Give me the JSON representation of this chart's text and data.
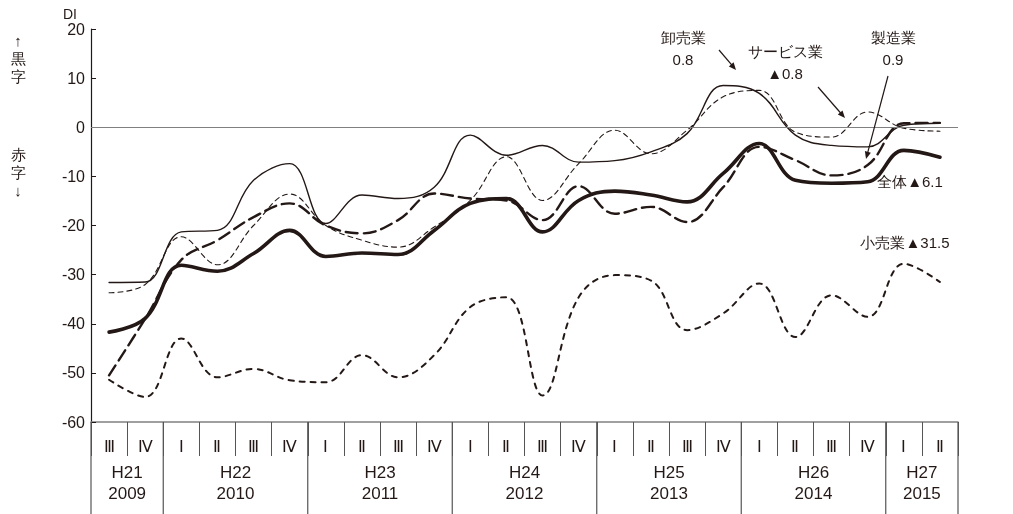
{
  "chart_data": {
    "type": "line",
    "ylabel": "DI",
    "categories": [
      "Ⅲ",
      "Ⅳ",
      "Ⅰ",
      "Ⅱ",
      "Ⅲ",
      "Ⅳ",
      "Ⅰ",
      "Ⅱ",
      "Ⅲ",
      "Ⅳ",
      "Ⅰ",
      "Ⅱ",
      "Ⅲ",
      "Ⅳ",
      "Ⅰ",
      "Ⅱ",
      "Ⅲ",
      "Ⅳ",
      "Ⅰ",
      "Ⅱ",
      "Ⅲ",
      "Ⅳ",
      "Ⅰ",
      "Ⅱ"
    ],
    "ylim": [
      -60,
      20
    ],
    "yticks": [
      -60,
      -50,
      -40,
      -30,
      -20,
      -10,
      0,
      10,
      20
    ],
    "grid": false,
    "marker": "none",
    "ref_lines": [
      {
        "axis": "y",
        "value": 0,
        "color": "#808080"
      }
    ],
    "annotations": [
      "↑黒字",
      "赤字↓",
      "H21\n2009",
      "H22\n2010",
      "H23\n2011",
      "H24\n2012",
      "H25\n2013",
      "H26\n2014",
      "H27\n2015",
      "全体▲6.1",
      "卸売業\n0.8",
      "サービス業\n▲0.8",
      "製造業\n0.9",
      "小売業▲31.5"
    ],
    "series": [
      {
        "color": "#231815",
        "line_style": "solid",
        "values": [
          -41.7,
          -38.9,
          -28.1,
          -29.3,
          -25.7,
          -21,
          -26.3,
          -25.6,
          -25.9,
          -21,
          -15.5,
          -14.5,
          -21.3,
          -14.9,
          -13,
          -13.8,
          -15.2,
          -9.4,
          -3.3,
          -10.8,
          -11.4,
          -11.1,
          -4.7,
          -6.1
        ]
      },
      {
        "color": "#231815",
        "line_style": "solid",
        "values": [
          -31.6,
          -31.5,
          -21.3,
          -21,
          -10.8,
          -7.4,
          -19.6,
          -13.8,
          -14.5,
          -12.2,
          -1.6,
          -5.7,
          -3.7,
          -7.1,
          -6.8,
          -5,
          -1.3,
          8.5,
          6.9,
          -1.6,
          -3.7,
          -4,
          0.4,
          0.8
        ]
      },
      {
        "color": "#231815",
        "line_style": "dashed",
        "values": [
          -33.7,
          -32,
          -22.3,
          -28,
          -20,
          -13.6,
          -20,
          -23,
          -24.4,
          -20.3,
          -14.9,
          -6,
          -14.9,
          -7.4,
          -0.6,
          -5.4,
          -0.6,
          6.2,
          7.5,
          -1,
          -2,
          3.1,
          -0.2,
          -0.8
        ]
      },
      {
        "color": "#231815",
        "line_style": "dashed",
        "values": [
          -50.5,
          -39,
          -27,
          -23,
          -18.3,
          -15.5,
          -20,
          -21.6,
          -18.9,
          -13.5,
          -14.5,
          -14.9,
          -18.9,
          -12,
          -17.6,
          -16.2,
          -19.3,
          -12.2,
          -4,
          -6.7,
          -9.8,
          -7.7,
          0.8,
          0.9
        ]
      },
      {
        "color": "#231815",
        "line_style": "dashed",
        "values": [
          -51.4,
          -54.9,
          -43,
          -50.9,
          -49.2,
          -51.5,
          -51.9,
          -46.4,
          -50.9,
          -46.4,
          -36.6,
          -34.6,
          -54.6,
          -34.6,
          -30.1,
          -31.2,
          -41.3,
          -37.9,
          -31.8,
          -42.7,
          -34.2,
          -38.6,
          -27.8,
          -31.5
        ]
      }
    ]
  }
}
